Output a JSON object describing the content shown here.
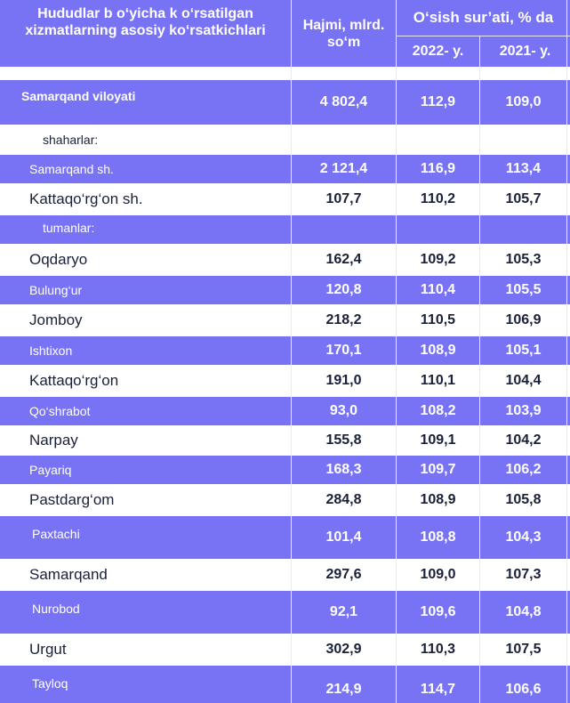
{
  "header": {
    "col1": "Hududlar b o‘yicha k o‘rsatilgan xizmatlarning asosiy ko‘rsatkichlari",
    "col2": "Hajmi, mlrd. so‘m",
    "col3": "O‘sish sur’ati, % da",
    "col3a": "2022- y.",
    "col3b": "2021- y."
  },
  "rows": [
    {
      "name": "Samarqand viloyati",
      "hajmi": "4 802,4",
      "y2022": "112,9",
      "y2021": "109,0"
    },
    {
      "name": "shaharlar:",
      "hajmi": "",
      "y2022": "",
      "y2021": ""
    },
    {
      "name": "Samarqand sh.",
      "hajmi": "2 121,4",
      "y2022": "116,9",
      "y2021": "113,4"
    },
    {
      "name": "Kattaqo‘rg‘on sh.",
      "hajmi": "107,7",
      "y2022": "110,2",
      "y2021": "105,7"
    },
    {
      "name": "tumanlar:",
      "hajmi": "",
      "y2022": "",
      "y2021": ""
    },
    {
      "name": "Oqdaryo",
      "hajmi": "162,4",
      "y2022": "109,2",
      "y2021": "105,3"
    },
    {
      "name": "Bulung‘ur",
      "hajmi": "120,8",
      "y2022": "110,4",
      "y2021": "105,5"
    },
    {
      "name": "Jomboy",
      "hajmi": "218,2",
      "y2022": "110,5",
      "y2021": "106,9"
    },
    {
      "name": "Ishtixon",
      "hajmi": "170,1",
      "y2022": "108,9",
      "y2021": "105,1"
    },
    {
      "name": "Kattaqo‘rg‘on",
      "hajmi": "191,0",
      "y2022": "110,1",
      "y2021": "104,4"
    },
    {
      "name": "Qo‘shrabot",
      "hajmi": "93,0",
      "y2022": "108,2",
      "y2021": "103,9"
    },
    {
      "name": "Narpay",
      "hajmi": "155,8",
      "y2022": "109,1",
      "y2021": "104,2"
    },
    {
      "name": "Payariq",
      "hajmi": "168,3",
      "y2022": "109,7",
      "y2021": "106,2"
    },
    {
      "name": "Pastdarg‘om",
      "hajmi": "284,8",
      "y2022": "108,9",
      "y2021": "105,8"
    },
    {
      "name": "Paxtachi",
      "hajmi": "101,4",
      "y2022": "108,8",
      "y2021": "104,3"
    },
    {
      "name": "Samarqand",
      "hajmi": "297,6",
      "y2022": "109,0",
      "y2021": "107,3"
    },
    {
      "name": "Nurobod",
      "hajmi": "92,1",
      "y2022": "109,6",
      "y2021": "104,8"
    },
    {
      "name": "Urgut",
      "hajmi": "302,9",
      "y2022": "110,3",
      "y2021": "107,5"
    },
    {
      "name": "Tayloq",
      "hajmi": "214,9",
      "y2022": "114,7",
      "y2021": "106,6"
    }
  ]
}
